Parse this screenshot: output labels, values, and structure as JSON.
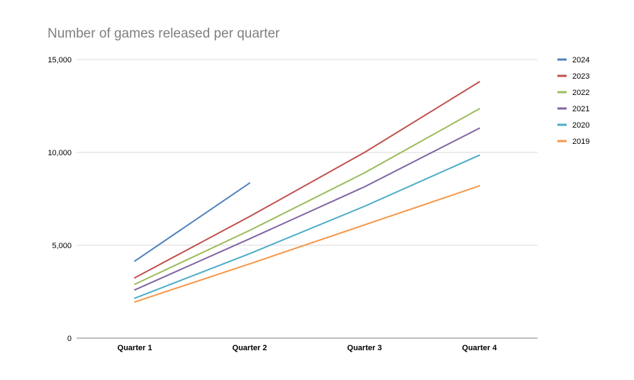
{
  "chart_data": {
    "type": "line",
    "title": "Number of games released per quarter",
    "categories": [
      "Quarter 1",
      "Quarter 2",
      "Quarter 3",
      "Quarter 4"
    ],
    "y_ticks": [
      "0",
      "5,000",
      "10,000",
      "15,000"
    ],
    "ylim": [
      0,
      15000
    ],
    "grid": true,
    "legend": "right",
    "series": [
      {
        "name": "2024",
        "color": "#4f81bd",
        "values": [
          4150,
          8350,
          null,
          null
        ]
      },
      {
        "name": "2023",
        "color": "#c0504d",
        "values": [
          3250,
          6550,
          10000,
          13800
        ]
      },
      {
        "name": "2022",
        "color": "#9bbb59",
        "values": [
          2900,
          5800,
          8900,
          12350
        ]
      },
      {
        "name": "2021",
        "color": "#8064a2",
        "values": [
          2600,
          5350,
          8150,
          11300
        ]
      },
      {
        "name": "2020",
        "color": "#4bacc6",
        "values": [
          2150,
          4550,
          7100,
          9850
        ]
      },
      {
        "name": "2019",
        "color": "#f79646",
        "values": [
          1950,
          4000,
          6100,
          8200
        ]
      }
    ]
  }
}
